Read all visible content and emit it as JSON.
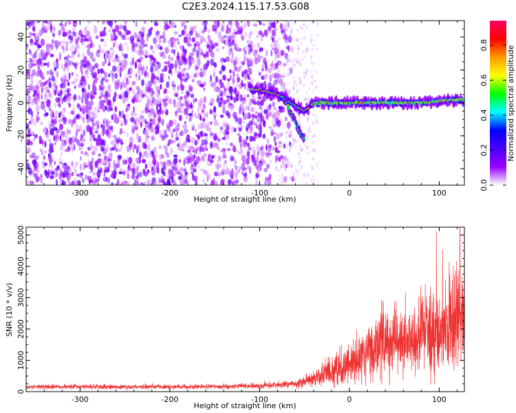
{
  "figure_title": "C2E3.2024.115.17.53.G08",
  "chart_data": [
    {
      "type": "heatmap",
      "title": "",
      "xlabel": "Height of straight line (km)",
      "ylabel": "Frequency (Hz)",
      "xlim": [
        -360,
        128
      ],
      "ylim": [
        -50,
        50
      ],
      "x_ticks": [
        "-300",
        "-200",
        "-100",
        "0",
        "100"
      ],
      "x_tick_values": [
        -300,
        -200,
        -100,
        0,
        100
      ],
      "y_ticks": [
        "-40",
        "-20",
        "0",
        "20",
        "40"
      ],
      "y_tick_values": [
        -40,
        -20,
        0,
        20,
        40
      ],
      "grid": false,
      "noise_region_x": [
        -360,
        -80
      ],
      "signal_track": {
        "x": [
          -100,
          -80,
          -70,
          -60,
          -50,
          -45,
          -40,
          -30,
          -20,
          0,
          20,
          40,
          60,
          80,
          100,
          120,
          128
        ],
        "y": [
          8,
          5,
          2,
          -2,
          -5,
          -3,
          0,
          0,
          0,
          0,
          0,
          0,
          0,
          0,
          1,
          2,
          2
        ]
      },
      "descending_branch": {
        "x": [
          -75,
          -70,
          -65,
          -60,
          -55,
          -50
        ],
        "y": [
          4,
          0,
          -6,
          -12,
          -18,
          -22
        ]
      },
      "colorbar": {
        "label": "Normalized spectral amplitude",
        "ticks": [
          "0.0",
          "0.2",
          "0.4",
          "0.6",
          "0.8"
        ],
        "tick_values": [
          0.0,
          0.2,
          0.4,
          0.6,
          0.8
        ],
        "range": [
          0,
          0.94
        ],
        "colors": [
          "#ffffff",
          "#9900ff",
          "#4b00ff",
          "#0000ff",
          "#00ffff",
          "#00ff00",
          "#ffff00",
          "#ff9900",
          "#ff0000",
          "#ff0066"
        ]
      }
    },
    {
      "type": "line",
      "title": "",
      "xlabel": "Height of straight line (km)",
      "ylabel": "SNR (10 * v/v)",
      "xlim": [
        -360,
        128
      ],
      "ylim": [
        0,
        5250
      ],
      "x_ticks": [
        "-300",
        "-200",
        "-100",
        "0",
        "100"
      ],
      "x_tick_values": [
        -300,
        -200,
        -100,
        0,
        100
      ],
      "y_ticks": [
        "0",
        "1000",
        "2000",
        "3000",
        "4000",
        "5000"
      ],
      "y_tick_values": [
        0,
        1000,
        2000,
        3000,
        4000,
        5000
      ],
      "grid": false,
      "color": "#ee3333",
      "series_envelope": {
        "x": [
          -360,
          -300,
          -200,
          -100,
          -60,
          -40,
          -20,
          0,
          20,
          40,
          60,
          80,
          100,
          120,
          128
        ],
        "mean": [
          150,
          160,
          150,
          180,
          250,
          400,
          650,
          900,
          1200,
          1500,
          1650,
          1800,
          1950,
          2200,
          2300
        ],
        "spread": [
          60,
          70,
          60,
          80,
          120,
          250,
          450,
          600,
          800,
          1000,
          1000,
          1100,
          1300,
          1500,
          1400
        ]
      },
      "peak": {
        "x": 123,
        "y": 5250
      }
    }
  ]
}
